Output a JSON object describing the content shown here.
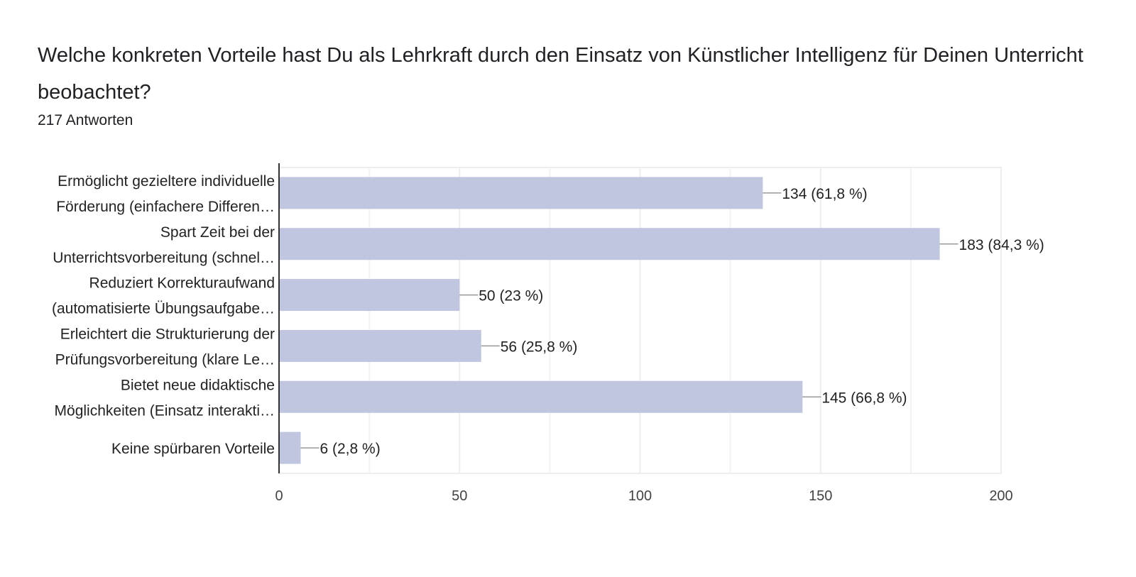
{
  "question": "Welche konkreten Vorteile hast Du als Lehrkraft durch den Einsatz von Künstlicher Intelligenz für Deinen Unterricht beobachtet?",
  "responses": "217 Antworten",
  "colors": {
    "bar": "#c0c5e0",
    "grid": "#eeeeee",
    "axis": "#333333",
    "leader": "#999999"
  },
  "chart_data": {
    "type": "bar",
    "orientation": "horizontal",
    "title": "Welche konkreten Vorteile hast Du als Lehrkraft durch den Einsatz von Künstlicher Intelligenz für Deinen Unterricht beobachtet?",
    "categories": [
      [
        "Ermöglicht gezieltere individuelle",
        "Förderung (einfachere Differen…"
      ],
      [
        "Spart Zeit bei der",
        "Unterrichtsvorbereitung (schnel…"
      ],
      [
        "Reduziert Korrekturaufwand",
        "(automatisierte Übungsaufgabe…"
      ],
      [
        "Erleichtert die Strukturierung der",
        "Prüfungsvorbereitung (klare Le…"
      ],
      [
        "Bietet neue didaktische",
        "Möglichkeiten (Einsatz interakti…"
      ],
      [
        "Keine spürbaren Vorteile"
      ]
    ],
    "values": [
      134,
      183,
      50,
      56,
      145,
      6
    ],
    "data_labels": [
      "134 (61,8 %)",
      "183 (84,3 %)",
      "50 (23 %)",
      "56 (25,8 %)",
      "145 (66,8 %)",
      "6 (2,8 %)"
    ],
    "xlim": [
      0,
      200
    ],
    "xticks": [
      0,
      50,
      100,
      150,
      200
    ],
    "minor_gridlines": [
      25,
      75,
      125,
      175
    ],
    "grid": true,
    "xlabel": "",
    "ylabel": ""
  }
}
